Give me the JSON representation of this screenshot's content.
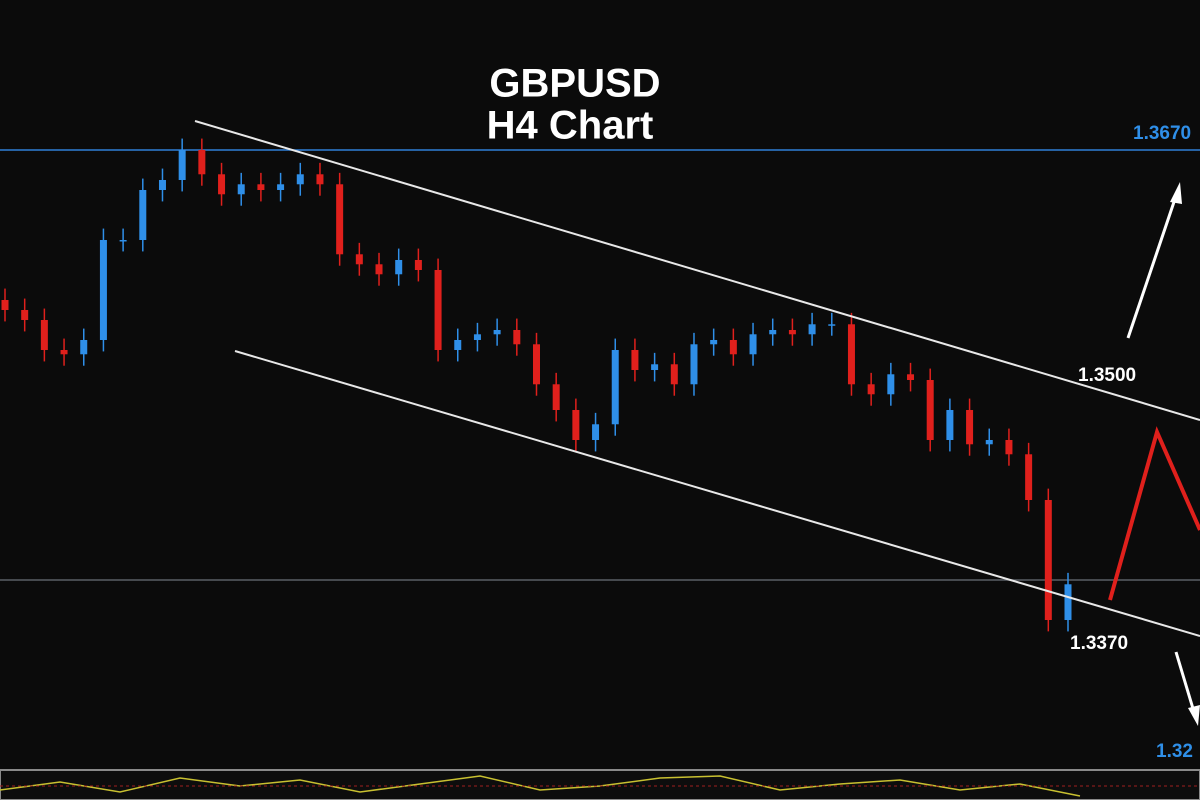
{
  "chart_data": {
    "type": "candlestick",
    "title": "GBPUSD",
    "subtitle": "H4 Chart",
    "open": [
      1.3565,
      1.3558,
      1.3551,
      1.353,
      1.3527,
      1.3537,
      1.3607,
      1.3607,
      1.3642,
      1.3649,
      1.367,
      1.3653,
      1.3639,
      1.3646,
      1.3642,
      1.3646,
      1.3653,
      1.3646,
      1.3597,
      1.359,
      1.3583,
      1.3593,
      1.3586,
      1.353,
      1.3537,
      1.3541,
      1.3544,
      1.3534,
      1.3506,
      1.3488,
      1.3467,
      1.3478,
      1.353,
      1.3516,
      1.352,
      1.3506,
      1.3534,
      1.3537,
      1.3527,
      1.3541,
      1.3544,
      1.3541,
      1.3548,
      1.3548,
      1.3506,
      1.3499,
      1.3513,
      1.3509,
      1.3467,
      1.3488,
      1.3464,
      1.3467,
      1.3457,
      1.3425,
      1.3341
    ],
    "high": [
      1.3573,
      1.3566,
      1.3559,
      1.3538,
      1.3545,
      1.3615,
      1.3615,
      1.365,
      1.3657,
      1.3678,
      1.3678,
      1.3661,
      1.3654,
      1.3654,
      1.3654,
      1.3661,
      1.3661,
      1.3654,
      1.3605,
      1.3598,
      1.3601,
      1.3601,
      1.3594,
      1.3545,
      1.3549,
      1.3552,
      1.3552,
      1.3542,
      1.3514,
      1.3496,
      1.3486,
      1.3538,
      1.3538,
      1.3528,
      1.3528,
      1.3542,
      1.3545,
      1.3545,
      1.3549,
      1.3552,
      1.3552,
      1.3556,
      1.3556,
      1.3556,
      1.3514,
      1.3521,
      1.3521,
      1.3517,
      1.3496,
      1.3496,
      1.3475,
      1.3475,
      1.3465,
      1.3433,
      1.3374
    ],
    "low": [
      1.355,
      1.3543,
      1.3522,
      1.3519,
      1.3519,
      1.3529,
      1.3599,
      1.3599,
      1.3634,
      1.3641,
      1.3645,
      1.3631,
      1.3631,
      1.3634,
      1.3634,
      1.3638,
      1.3638,
      1.3589,
      1.3582,
      1.3575,
      1.3575,
      1.3578,
      1.3522,
      1.3522,
      1.3529,
      1.3533,
      1.3526,
      1.3498,
      1.348,
      1.3459,
      1.3459,
      1.347,
      1.3508,
      1.3508,
      1.3498,
      1.3498,
      1.3526,
      1.3519,
      1.3519,
      1.3533,
      1.3533,
      1.3533,
      1.354,
      1.3498,
      1.3491,
      1.3491,
      1.3501,
      1.3459,
      1.3459,
      1.3456,
      1.3456,
      1.3449,
      1.3417,
      1.3333,
      1.3333
    ],
    "close": [
      1.3558,
      1.3551,
      1.353,
      1.3527,
      1.3537,
      1.3607,
      1.3607,
      1.3642,
      1.3649,
      1.367,
      1.3653,
      1.3639,
      1.3646,
      1.3642,
      1.3646,
      1.3653,
      1.3646,
      1.3597,
      1.359,
      1.3583,
      1.3593,
      1.3586,
      1.353,
      1.3537,
      1.3541,
      1.3544,
      1.3534,
      1.3506,
      1.3488,
      1.3467,
      1.3478,
      1.353,
      1.3516,
      1.352,
      1.3506,
      1.3534,
      1.3537,
      1.3527,
      1.3541,
      1.3544,
      1.3541,
      1.3548,
      1.3548,
      1.3506,
      1.3499,
      1.3513,
      1.3509,
      1.3467,
      1.3488,
      1.3464,
      1.3467,
      1.3457,
      1.3425,
      1.3341,
      1.3366
    ],
    "up_color": "#2f8fe8",
    "down_color": "#e0201c",
    "ylim": [
      1.3236,
      1.3775
    ],
    "hlines": [
      {
        "value": 1.367,
        "color": "#2f7fd8"
      },
      {
        "value": 1.3369,
        "color": "#5a5f66"
      }
    ],
    "annotations": [
      "1.3670",
      "1.3500",
      "1.3370",
      "1.32"
    ]
  }
}
